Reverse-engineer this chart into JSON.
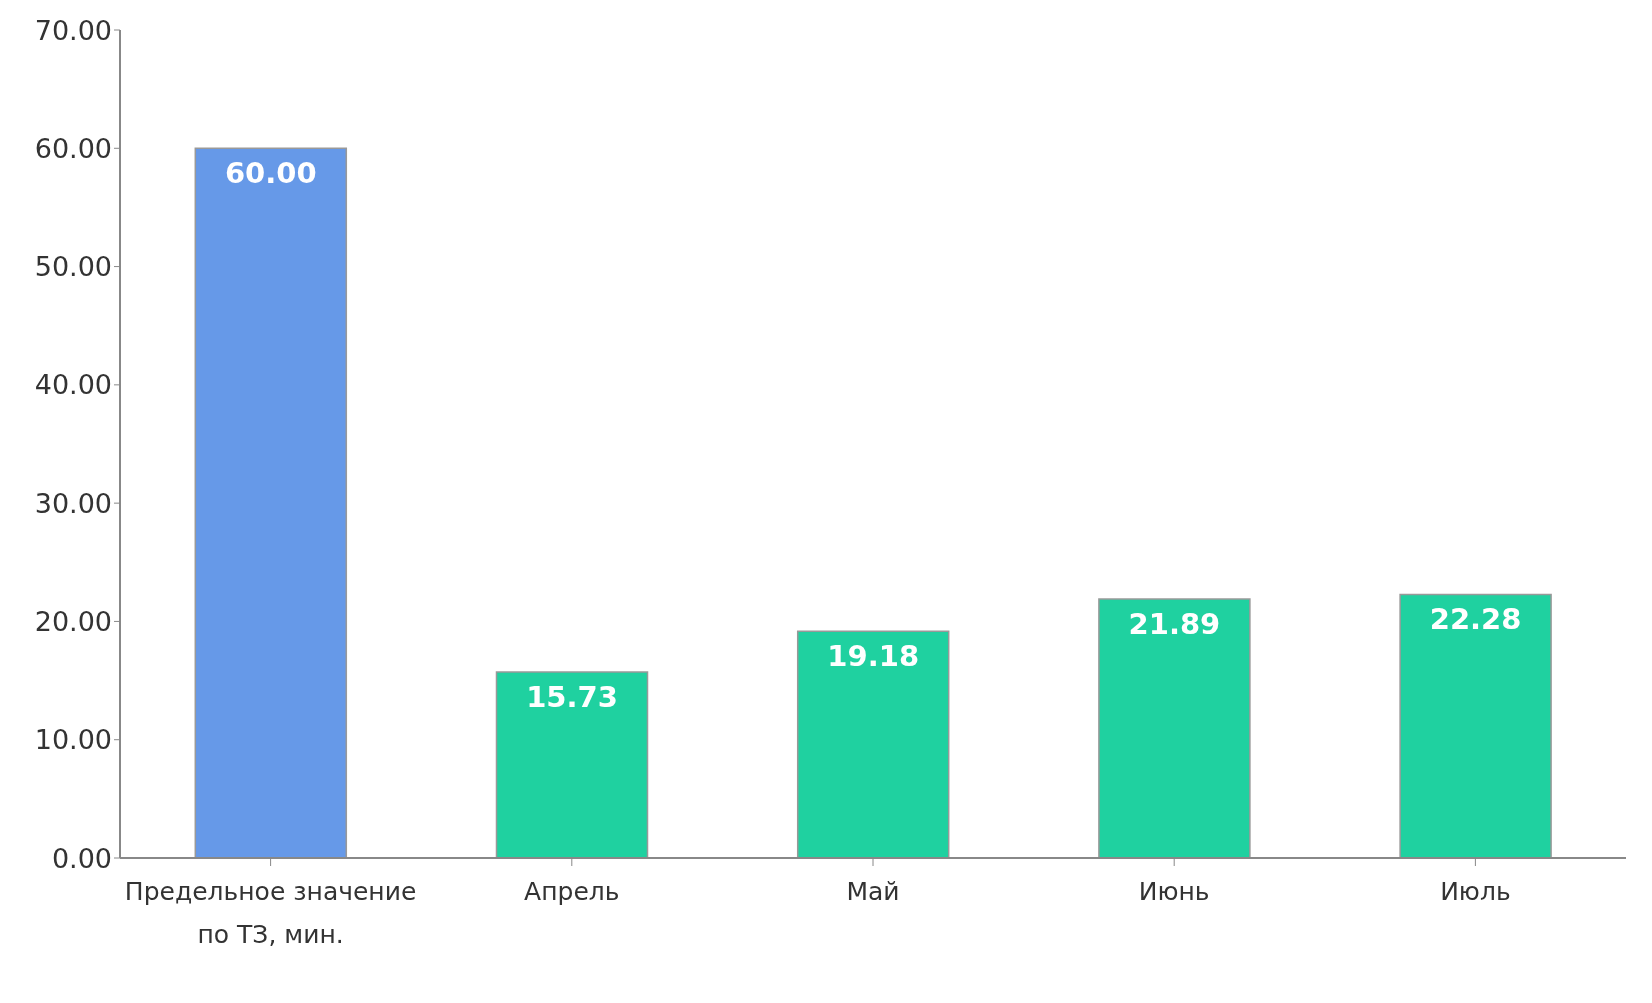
{
  "chart_data": {
    "type": "bar",
    "categories": [
      "Предельное значение по ТЗ, мин.",
      "Апрель",
      "Май",
      "Июнь",
      "Июль"
    ],
    "values": [
      60.0,
      15.73,
      19.18,
      21.89,
      22.28
    ],
    "value_labels": [
      "60.00",
      "15.73",
      "19.18",
      "21.89",
      "22.28"
    ],
    "colors": [
      "#6699e8",
      "#1fd1a0",
      "#1fd1a0",
      "#1fd1a0",
      "#1fd1a0"
    ],
    "ylim": [
      0,
      70
    ],
    "yticks": [
      {
        "value": 0,
        "label": "0.00"
      },
      {
        "value": 10,
        "label": "10.00"
      },
      {
        "value": 20,
        "label": "20.00"
      },
      {
        "value": 30,
        "label": "30.00"
      },
      {
        "value": 40,
        "label": "40.00"
      },
      {
        "value": 50,
        "label": "50.00"
      },
      {
        "value": 60,
        "label": "60.00"
      },
      {
        "value": 70,
        "label": "70.00"
      }
    ],
    "grid": false,
    "legend": false
  }
}
